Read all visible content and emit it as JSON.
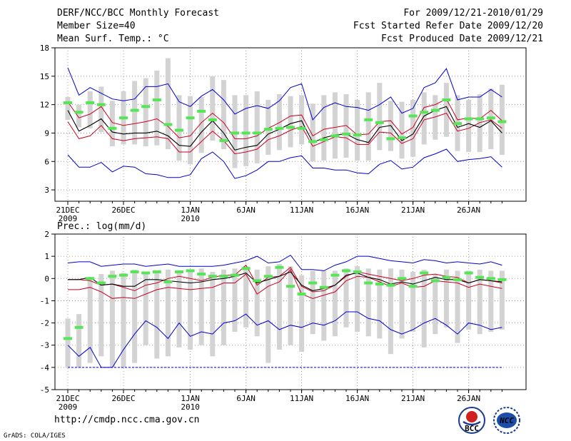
{
  "header": {
    "title": "DERF/NCC/BCC Monthly Forecast",
    "member_size": "Member Size=40",
    "variable1": "Mean Surf. Temp.: °C",
    "period": "For 2009/12/21-2010/01/29",
    "started": "Fcst Started Refer Date 2009/12/20",
    "produced": "Fcst Produced Date 2009/12/21"
  },
  "panel2_label": "Prec.: log(mm/d)",
  "footer": {
    "url": "http://cmdp.ncc.cma.gov.cn",
    "grads": "GrADS: COLA/IGES",
    "logo1_text": "BCC",
    "logo2_text": "NCC"
  },
  "colors": {
    "box": "#d3d3d3",
    "obs": "#55e655",
    "ens_max_min": "#0000cc",
    "ens_spread": "#cc0022",
    "ens_mean": "#000000"
  },
  "chart_data": [
    {
      "type": "line",
      "title": "Mean Surf. Temp.: °C",
      "ylim": [
        1.8,
        18
      ],
      "yticks": [
        3,
        6,
        9,
        12,
        15,
        18
      ],
      "xlabels": [
        {
          "day": 0,
          "label": "21DEC",
          "sub": "2009"
        },
        {
          "day": 5,
          "label": "26DEC",
          "sub": ""
        },
        {
          "day": 11,
          "label": "1JAN",
          "sub": "2010"
        },
        {
          "day": 16,
          "label": "6JAN",
          "sub": ""
        },
        {
          "day": 21,
          "label": "11JAN",
          "sub": ""
        },
        {
          "day": 26,
          "label": "16JAN",
          "sub": ""
        },
        {
          "day": 31,
          "label": "21JAN",
          "sub": ""
        },
        {
          "day": 36,
          "label": "26JAN",
          "sub": ""
        }
      ],
      "series": [
        {
          "name": "max",
          "values": [
            15.9,
            13.0,
            13.8,
            13.2,
            12.6,
            12.4,
            12.6,
            13.9,
            13.9,
            14.2,
            12.3,
            11.8,
            12.9,
            13.6,
            12.5,
            11.0,
            11.6,
            11.9,
            11.6,
            12.4,
            13.8,
            14.2,
            10.4,
            11.7,
            12.2,
            11.8,
            11.7,
            11.4,
            12.0,
            12.8,
            11.1,
            11.6,
            13.8,
            14.3,
            15.8,
            12.5,
            12.8,
            12.8,
            13.6,
            12.8
          ]
        },
        {
          "name": "upper",
          "values": [
            10.2,
            8.4,
            8.7,
            9.8,
            8.4,
            8.2,
            8.4,
            8.5,
            8.6,
            8.4,
            7.0,
            7.0,
            8.1,
            9.2,
            8.2,
            6.8,
            7.0,
            7.3,
            8.3,
            8.7,
            9.3,
            9.7,
            7.6,
            8.1,
            8.6,
            8.5,
            7.8,
            7.8,
            9.1,
            9.0,
            7.9,
            8.4,
            10.4,
            10.7,
            11.1,
            9.2,
            9.5,
            10.1,
            10.4,
            9.5
          ]
        },
        {
          "name": "lower",
          "values": [
            6.7,
            5.4,
            5.4,
            5.9,
            4.9,
            5.5,
            5.4,
            4.7,
            4.6,
            4.3,
            4.3,
            4.6,
            6.3,
            7.0,
            6.0,
            4.2,
            4.5,
            5.1,
            6.0,
            6.0,
            6.4,
            6.6,
            5.3,
            5.3,
            5.1,
            5.1,
            4.8,
            4.7,
            5.7,
            6.1,
            5.2,
            5.4,
            6.4,
            6.8,
            7.3,
            6.0,
            6.2,
            6.3,
            6.5,
            5.4
          ]
        },
        {
          "name": "min",
          "values": [
            12.3,
            10.6,
            11.0,
            11.8,
            10.1,
            9.8,
            10.0,
            10.2,
            10.5,
            9.7,
            8.5,
            8.7,
            10.1,
            11.1,
            10.1,
            8.4,
            8.4,
            8.7,
            9.5,
            10.1,
            10.8,
            10.9,
            8.7,
            9.4,
            9.6,
            9.8,
            8.8,
            8.9,
            10.2,
            10.3,
            8.9,
            9.6,
            11.7,
            12.0,
            12.6,
            10.4,
            10.6,
            10.5,
            11.4,
            10.3
          ]
        },
        {
          "name": "mean",
          "values": [
            11.4,
            9.2,
            9.8,
            10.5,
            9.1,
            8.9,
            9.0,
            9.0,
            9.2,
            8.7,
            7.7,
            7.6,
            9.1,
            10.3,
            9.0,
            7.2,
            7.5,
            7.7,
            8.9,
            9.4,
            10.0,
            10.3,
            8.0,
            8.5,
            8.8,
            8.9,
            8.3,
            8.0,
            9.6,
            9.8,
            8.2,
            8.9,
            10.8,
            11.4,
            11.8,
            9.6,
            10.0,
            9.6,
            10.3,
            9.0
          ]
        },
        {
          "name": "obs",
          "values": [
            12.2,
            11.2,
            12.2,
            12.0,
            9.5,
            10.6,
            11.4,
            11.8,
            12.5,
            9.9,
            9.3,
            10.6,
            11.3,
            10.4,
            8.2,
            9.0,
            9.0,
            9.0,
            9.4,
            9.5,
            9.6,
            9.5,
            8.1,
            8.3,
            8.7,
            8.9,
            8.8,
            10.4,
            10.1,
            8.4,
            8.5,
            10.8,
            11.2,
            11.4,
            12.5,
            10.0,
            10.5,
            10.5,
            10.6,
            10.2
          ]
        },
        {
          "name": "box_top",
          "values": [
            12.8,
            12.0,
            13.4,
            13.9,
            12.4,
            13.4,
            14.5,
            14.8,
            15.6,
            16.9,
            13.0,
            12.9,
            12.8,
            15.0,
            14.6,
            13.0,
            13.0,
            13.4,
            12.5,
            13.1,
            12.9,
            13.0,
            12.1,
            13.0,
            13.3,
            13.1,
            12.5,
            13.3,
            14.3,
            12.4,
            12.3,
            12.5,
            13.3,
            13.0,
            14.3,
            13.0,
            12.5,
            13.1,
            13.7,
            14.1
          ]
        },
        {
          "name": "box_bottom",
          "values": [
            10.4,
            9.6,
            9.5,
            9.1,
            7.6,
            7.8,
            7.8,
            7.6,
            7.7,
            7.3,
            6.1,
            5.7,
            6.9,
            8.2,
            7.3,
            5.3,
            5.5,
            5.8,
            6.7,
            7.2,
            7.5,
            7.8,
            6.0,
            6.1,
            6.3,
            6.4,
            6.1,
            6.1,
            7.2,
            7.1,
            6.3,
            6.5,
            7.8,
            8.3,
            8.6,
            7.1,
            7.0,
            7.0,
            7.3,
            6.7
          ]
        }
      ]
    },
    {
      "type": "line",
      "title": "Prec.: log(mm/d)",
      "ylim": [
        -5,
        2
      ],
      "yticks": [
        -5,
        -4,
        -3,
        -2,
        -1,
        0,
        1,
        2
      ],
      "xlabels": [
        {
          "day": 0,
          "label": "21DEC",
          "sub": "2009"
        },
        {
          "day": 5,
          "label": "26DEC",
          "sub": ""
        },
        {
          "day": 11,
          "label": "1JAN",
          "sub": "2010"
        },
        {
          "day": 16,
          "label": "6JAN",
          "sub": ""
        },
        {
          "day": 21,
          "label": "11JAN",
          "sub": ""
        },
        {
          "day": 26,
          "label": "16JAN",
          "sub": ""
        },
        {
          "day": 31,
          "label": "21JAN",
          "sub": ""
        },
        {
          "day": 36,
          "label": "26JAN",
          "sub": ""
        }
      ],
      "series": [
        {
          "name": "max",
          "values": [
            0.7,
            0.75,
            0.75,
            0.55,
            0.6,
            0.65,
            0.65,
            0.55,
            0.6,
            0.65,
            0.55,
            0.55,
            0.55,
            0.55,
            0.6,
            0.7,
            0.8,
            1.0,
            0.7,
            0.75,
            1.05,
            0.4,
            0.4,
            0.35,
            0.6,
            0.75,
            1.0,
            1.0,
            0.9,
            0.8,
            0.75,
            0.7,
            0.85,
            0.8,
            0.7,
            0.75,
            0.7,
            0.65,
            0.75,
            0.6
          ]
        },
        {
          "name": "upper",
          "values": [
            -0.5,
            -0.5,
            -0.4,
            -0.6,
            -0.9,
            -0.85,
            -0.9,
            -0.7,
            -0.5,
            -0.4,
            -0.45,
            -0.5,
            -0.45,
            -0.4,
            -0.2,
            -0.2,
            0.2,
            -0.7,
            -0.35,
            -0.15,
            0.4,
            -0.7,
            -0.9,
            -0.75,
            -0.6,
            -0.1,
            0.1,
            0.05,
            -0.15,
            -0.35,
            -0.2,
            -0.4,
            -0.35,
            -0.1,
            -0.15,
            -0.2,
            -0.4,
            -0.25,
            -0.35,
            -0.45
          ]
        },
        {
          "name": "lower",
          "values": [
            -3.0,
            -3.5,
            -3.1,
            -4.0,
            -4.0,
            -3.2,
            -2.5,
            -1.9,
            -2.2,
            -2.7,
            -2.0,
            -2.6,
            -2.4,
            -2.5,
            -2.0,
            -1.9,
            -1.6,
            -2.1,
            -1.9,
            -2.3,
            -2.1,
            -2.2,
            -2.0,
            -2.1,
            -1.9,
            -1.5,
            -1.5,
            -1.8,
            -1.9,
            -2.3,
            -2.5,
            -2.3,
            -2.0,
            -1.8,
            -2.1,
            -2.5,
            -2.0,
            -2.1,
            -2.3,
            -2.2
          ]
        },
        {
          "name": "min",
          "values": [
            -0.05,
            -0.05,
            -0.1,
            -0.3,
            -0.25,
            -0.4,
            -0.55,
            -0.3,
            -0.2,
            0.0,
            0.1,
            0.0,
            -0.1,
            0.05,
            0.15,
            0.15,
            0.6,
            -0.3,
            0.05,
            0.1,
            0.5,
            -0.35,
            -0.6,
            -0.55,
            -0.3,
            0.1,
            0.3,
            0.2,
            0.1,
            0.0,
            -0.1,
            0.0,
            0.15,
            0.2,
            0.1,
            0.05,
            -0.2,
            -0.05,
            -0.1,
            -0.2
          ]
        },
        {
          "name": "mean",
          "values": [
            -0.05,
            -0.05,
            0.05,
            -0.3,
            -0.25,
            -0.35,
            -0.35,
            -0.05,
            -0.05,
            -0.1,
            -0.15,
            -0.2,
            -0.15,
            -0.05,
            0.0,
            0.1,
            0.25,
            -0.2,
            -0.05,
            0.1,
            0.3,
            -0.3,
            -0.55,
            -0.45,
            -0.3,
            0.15,
            0.25,
            0.05,
            -0.05,
            -0.25,
            -0.15,
            -0.25,
            -0.1,
            0.05,
            -0.05,
            -0.05,
            -0.2,
            -0.05,
            -0.1,
            -0.15
          ]
        },
        {
          "name": "obs",
          "values": [
            -2.7,
            -2.2,
            0.0,
            -0.2,
            0.1,
            0.15,
            0.3,
            0.25,
            0.3,
            -0.15,
            0.3,
            0.35,
            0.2,
            0.1,
            0.1,
            0.15,
            0.45,
            -0.1,
            0.1,
            0.5,
            -0.35,
            -0.7,
            -0.2,
            -0.4,
            0.15,
            0.35,
            0.3,
            -0.2,
            -0.25,
            -0.3,
            0.0,
            -0.35,
            0.25,
            -0.1,
            0.05,
            -0.05,
            0.25,
            0.05,
            0.0,
            -0.05
          ]
        },
        {
          "name": "box_top",
          "values": [
            -1.8,
            -1.6,
            0.05,
            0.2,
            0.35,
            0.25,
            0.4,
            0.2,
            0.35,
            0.4,
            0.3,
            0.4,
            0.45,
            0.3,
            0.4,
            0.45,
            0.55,
            0.4,
            0.55,
            0.65,
            0.55,
            0.15,
            0.35,
            0.35,
            0.35,
            0.45,
            0.55,
            0.45,
            0.4,
            0.45,
            0.4,
            0.3,
            0.4,
            0.2,
            0.4,
            0.35,
            0.35,
            0.4,
            0.35,
            0.35
          ]
        },
        {
          "name": "box_bottom",
          "values": [
            -4.0,
            -4.0,
            -3.8,
            -3.5,
            -4.0,
            -4.0,
            -3.8,
            -3.0,
            -3.6,
            -3.5,
            -3.1,
            -3.2,
            -3.0,
            -3.5,
            -3.0,
            -2.4,
            -2.2,
            -2.6,
            -3.8,
            -3.2,
            -3.0,
            -3.3,
            -2.5,
            -2.8,
            -2.6,
            -2.2,
            -2.4,
            -2.6,
            -2.7,
            -3.4,
            -2.7,
            -2.4,
            -3.1,
            -2.5,
            -2.2,
            -2.9,
            -2.3,
            -2.5,
            -2.4,
            -2.3
          ]
        }
      ],
      "floor_line": -4
    }
  ]
}
